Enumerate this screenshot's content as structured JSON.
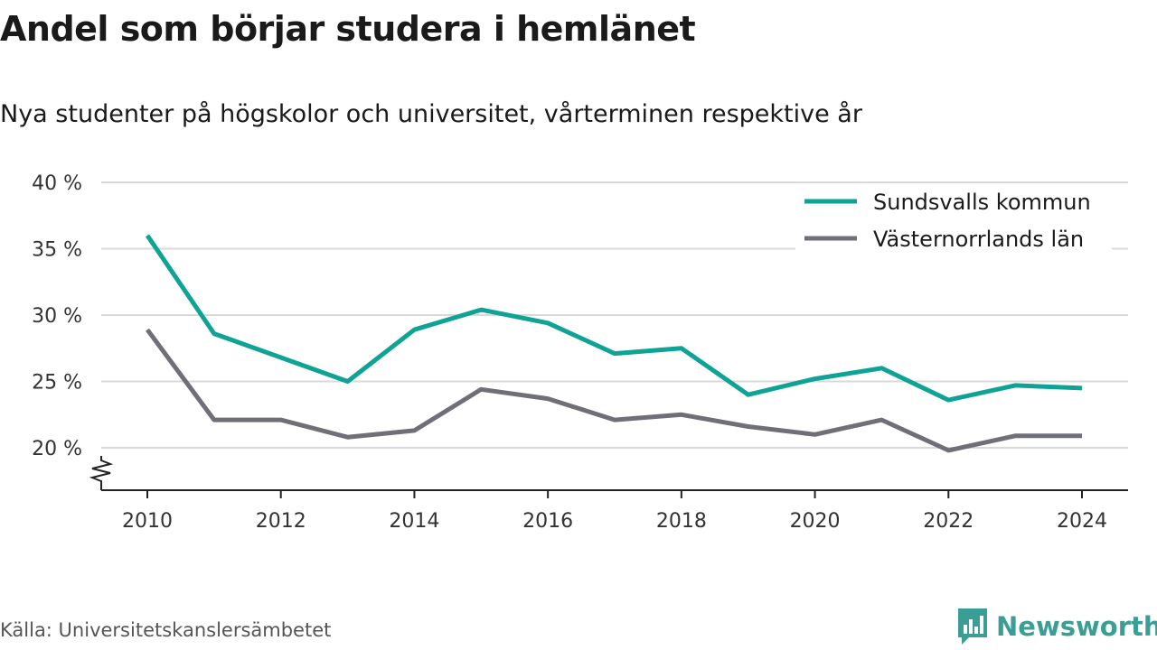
{
  "title": "Andel som börjar studera i hemlänet",
  "subtitle": "Nya studenter på högskolor och universitet, vårterminen respektive år",
  "source": "Källa: Universitetskanslersämbetet",
  "brand": {
    "name": "Newsworthy",
    "icon": "newsworthy-logo-icon",
    "color": "#3a9e95"
  },
  "chart_data": {
    "type": "line",
    "x": [
      2010,
      2011,
      2012,
      2013,
      2014,
      2015,
      2016,
      2017,
      2018,
      2019,
      2020,
      2021,
      2022,
      2023,
      2024
    ],
    "x_ticks": [
      "2010",
      "2012",
      "2014",
      "2016",
      "2018",
      "2020",
      "2022",
      "2024"
    ],
    "y_ticks": [
      "20 %",
      "25 %",
      "30 %",
      "35 %",
      "40 %"
    ],
    "ylim": [
      17,
      40
    ],
    "y_axis_break": true,
    "grid": true,
    "legend_position": "top-right",
    "series": [
      {
        "name": "Sundsvalls kommun",
        "color": "#0fa396",
        "values": [
          36.0,
          28.6,
          26.8,
          25.0,
          28.9,
          30.4,
          29.4,
          27.1,
          27.5,
          24.0,
          25.2,
          26.0,
          23.6,
          24.7,
          24.5
        ]
      },
      {
        "name": "Västernorrlands län",
        "color": "#6f6f78",
        "values": [
          28.9,
          22.1,
          22.1,
          20.8,
          21.3,
          24.4,
          23.7,
          22.1,
          22.5,
          21.6,
          21.0,
          22.1,
          19.8,
          20.9,
          20.9
        ]
      }
    ]
  }
}
